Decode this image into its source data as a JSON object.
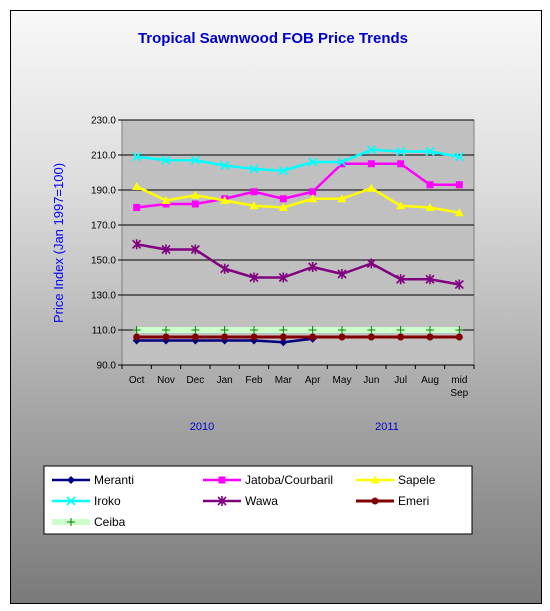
{
  "chart_data": {
    "type": "line",
    "title": "Tropical Sawnwood FOB Price Trends",
    "xlabel": "",
    "ylabel": "Price Index  (Jan 1997=100)",
    "ylim": [
      90,
      230
    ],
    "yticks": [
      "230.0",
      "210.0",
      "190.0",
      "170.0",
      "150.0",
      "130.0",
      "110.0",
      "90.0"
    ],
    "categories": [
      "Oct",
      "Nov",
      "Dec",
      "Jan",
      "Feb",
      "Mar",
      "Apr",
      "May",
      "Jun",
      "Jul",
      "Aug",
      "mid Sep"
    ],
    "year_labels": [
      "2010",
      "2011"
    ],
    "grid": "horizontal",
    "legend_position": "bottom",
    "series": [
      {
        "name": "Meranti",
        "color": "#000080",
        "marker": "diamond",
        "values": [
          104,
          104,
          104,
          104,
          104,
          103,
          105,
          null,
          null,
          null,
          null,
          null
        ]
      },
      {
        "name": "Jatoba/Courbaril",
        "color": "#ff00ff",
        "marker": "square",
        "values": [
          180,
          182,
          182,
          185,
          189,
          185,
          189,
          205,
          205,
          205,
          193,
          193
        ]
      },
      {
        "name": "Sapele",
        "color": "#ffff00",
        "marker": "triangle",
        "values": [
          192,
          184,
          187,
          184,
          181,
          180,
          185,
          185,
          191,
          181,
          180,
          177
        ]
      },
      {
        "name": "Iroko",
        "color": "#00ffff",
        "marker": "x",
        "values": [
          209,
          207,
          207,
          204,
          202,
          201,
          206,
          206,
          213,
          212,
          212,
          209
        ]
      },
      {
        "name": "Wawa",
        "color": "#800080",
        "marker": "star",
        "values": [
          159,
          156,
          156,
          145,
          140,
          140,
          146,
          142,
          148,
          139,
          139,
          136
        ]
      },
      {
        "name": "Emeri",
        "color": "#800000",
        "marker": "circle",
        "values": [
          106,
          106,
          106,
          106,
          106,
          106,
          106,
          106,
          106,
          106,
          106,
          106
        ]
      },
      {
        "name": "Ceiba",
        "color": "#ccffcc",
        "marker": "plus",
        "values": [
          110,
          110,
          110,
          110,
          110,
          110,
          110,
          110,
          110,
          110,
          110,
          110
        ]
      }
    ]
  }
}
